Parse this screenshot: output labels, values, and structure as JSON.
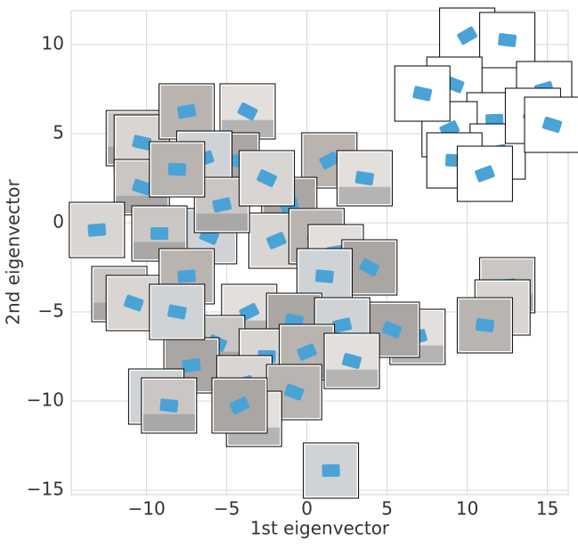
{
  "chart_data": {
    "type": "scatter",
    "x_label": "1st eigenvector",
    "y_label": "2nd eigenvector",
    "xlim": [
      -14.7,
      16.3
    ],
    "ylim": [
      -15.25,
      11.9
    ],
    "xticks": [
      {
        "value": -10,
        "label": "−10"
      },
      {
        "value": -5,
        "label": "−5"
      },
      0,
      5,
      10,
      15
    ],
    "yticks": [
      {
        "value": -15,
        "label": "−15"
      },
      {
        "value": -10,
        "label": "−10"
      },
      {
        "value": -5,
        "label": "−5"
      },
      0,
      5,
      10
    ],
    "grid": true,
    "x": [
      10.0,
      12.5,
      14.8,
      9.2,
      11.7,
      8.9,
      7.2,
      11.9,
      14.1,
      9.2,
      11.1,
      15.3,
      12.5,
      12.2,
      11.1,
      6.9,
      5.3,
      1.5,
      -10.8,
      -10.3,
      -7.5,
      -3.7,
      -4.7,
      -6.4,
      -10.3,
      -13.1,
      1.4,
      3.6,
      -1.1,
      -6.1,
      -9.2,
      -1.9,
      0.6,
      1.8,
      3.9,
      1.1,
      -11.7,
      -10.8,
      -7.5,
      -3.6,
      -0.8,
      2.2,
      -5.6,
      -2.5,
      0,
      2.8,
      -7.2,
      -9.4,
      -8.6,
      -3.9,
      -0.8,
      -3.3,
      -4.2,
      -8.1,
      -5.3,
      -2.5,
      -8.1
    ],
    "y": [
      10.5,
      10.25,
      7.5,
      7.75,
      5.75,
      5.25,
      7.25,
      4.0,
      6.0,
      3.5,
      2.75,
      5.5,
      -3.5,
      -4.75,
      -5.75,
      -6.4,
      -6.0,
      -13.9,
      4.75,
      4.5,
      6.25,
      6.25,
      3.5,
      3.6,
      2.0,
      -0.4,
      3.5,
      2.5,
      1.0,
      -0.75,
      -0.6,
      -1.0,
      -0.75,
      -1.65,
      -2.5,
      -3.0,
      -4.0,
      -4.5,
      -3.0,
      -5.0,
      -5.5,
      -5.75,
      -6.75,
      -7.5,
      -7.25,
      -7.75,
      -8.0,
      -9.75,
      -10.25,
      -9.0,
      -9.5,
      -11.0,
      -10.25,
      -5.0,
      1.0,
      2.5,
      3.0
    ]
  }
}
